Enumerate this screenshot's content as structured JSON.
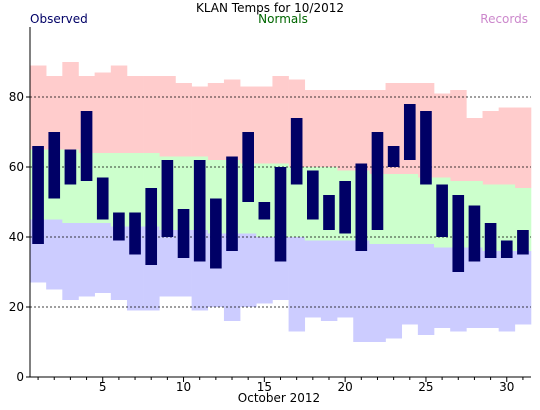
{
  "chart_data": {
    "type": "bar",
    "title": "KLAN Temps for 10/2012",
    "xlabel": "October 2012",
    "ylabel": "",
    "xlim": [
      0.5,
      31.5
    ],
    "ylim": [
      0,
      100
    ],
    "x_ticks": [
      5,
      10,
      15,
      20,
      25,
      30
    ],
    "y_ticks": [
      0,
      20,
      40,
      60,
      80
    ],
    "grid": "dashed horizontal at 20, 40, 60, 80",
    "legend": [
      {
        "name": "Observed",
        "position": "top-left",
        "color": "#000066"
      },
      {
        "name": "Normals",
        "position": "top-center",
        "color": "#006600"
      },
      {
        "name": "Records",
        "position": "top-right",
        "color": "#cc88cc"
      }
    ],
    "colors": {
      "observed": "#000066",
      "normals": "#ccffcc",
      "records_high": "#ffcccc",
      "records_low": "#ccccff",
      "gridline": "#000000",
      "axis": "#000000"
    },
    "days": [
      1,
      2,
      3,
      4,
      5,
      6,
      7,
      8,
      9,
      10,
      11,
      12,
      13,
      14,
      15,
      16,
      17,
      18,
      19,
      20,
      21,
      22,
      23,
      24,
      25,
      26,
      27,
      28,
      29,
      30,
      31
    ],
    "series": [
      {
        "name": "Observed",
        "high": [
          66,
          70,
          65,
          76,
          57,
          47,
          47,
          54,
          62,
          48,
          62,
          51,
          63,
          70,
          50,
          60,
          74,
          59,
          52,
          56,
          61,
          70,
          66,
          78,
          76,
          55,
          52,
          49,
          44,
          39,
          42
        ],
        "low": [
          38,
          51,
          55,
          56,
          45,
          39,
          35,
          32,
          40,
          34,
          33,
          31,
          36,
          50,
          45,
          33,
          55,
          45,
          42,
          41,
          36,
          42,
          60,
          62,
          55,
          40,
          30,
          33,
          34,
          34,
          35
        ]
      },
      {
        "name": "Normals",
        "high": [
          65,
          65,
          65,
          64,
          64,
          64,
          64,
          64,
          63,
          63,
          63,
          62,
          62,
          61,
          61,
          61,
          60,
          60,
          60,
          59,
          59,
          58,
          58,
          58,
          57,
          57,
          56,
          56,
          55,
          55,
          54
        ],
        "low": [
          45,
          45,
          44,
          44,
          44,
          43,
          43,
          43,
          42,
          42,
          42,
          41,
          41,
          41,
          40,
          40,
          40,
          39,
          39,
          39,
          39,
          38,
          38,
          38,
          38,
          37,
          37,
          37,
          36,
          36,
          36
        ]
      },
      {
        "name": "Records",
        "high": [
          89,
          86,
          90,
          86,
          87,
          89,
          86,
          86,
          86,
          84,
          83,
          84,
          85,
          83,
          83,
          86,
          85,
          82,
          82,
          82,
          82,
          82,
          84,
          84,
          84,
          81,
          82,
          74,
          76,
          77,
          77
        ],
        "low": [
          27,
          25,
          22,
          23,
          24,
          22,
          19,
          19,
          23,
          23,
          19,
          20,
          16,
          20,
          21,
          22,
          13,
          17,
          16,
          17,
          10,
          10,
          11,
          15,
          12,
          14,
          13,
          14,
          14,
          13,
          15
        ]
      }
    ]
  }
}
